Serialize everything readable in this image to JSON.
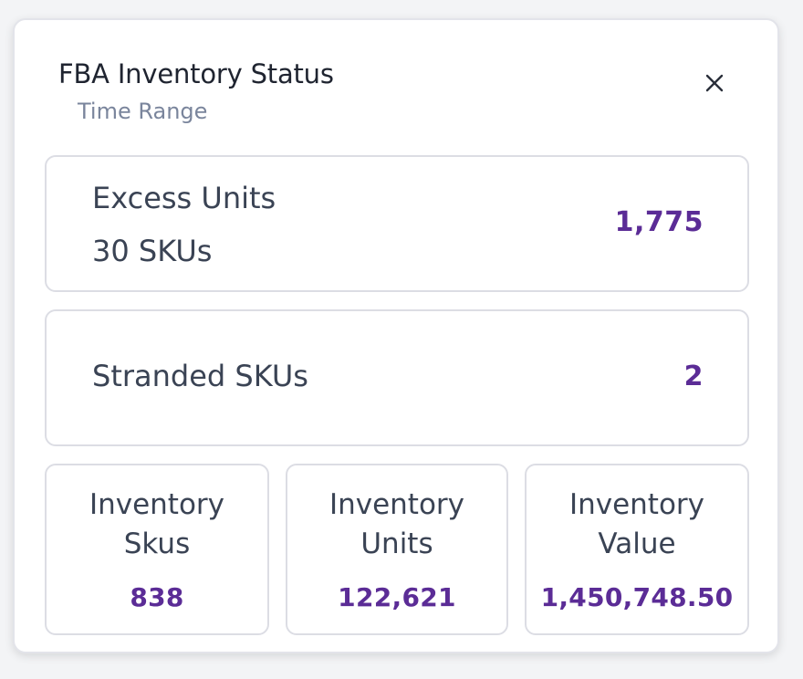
{
  "header": {
    "title": "FBA Inventory Status",
    "subtitle": "Time Range",
    "close_icon": "close-icon"
  },
  "excess": {
    "label": "Excess Units",
    "sub": "30 SKUs",
    "value": "1,775"
  },
  "stranded": {
    "label": "Stranded SKUs",
    "value": "2"
  },
  "stats": [
    {
      "line1": "Inventory",
      "line2": "Skus",
      "value": "838"
    },
    {
      "line1": "Inventory",
      "line2": "Units",
      "value": "122,621"
    },
    {
      "line1": "Inventory",
      "line2": "Value",
      "value": "1,450,748.50"
    }
  ],
  "colors": {
    "accent": "#5b2c96",
    "text": "#3a4354",
    "muted": "#7a859c",
    "border": "#dcdde4"
  }
}
